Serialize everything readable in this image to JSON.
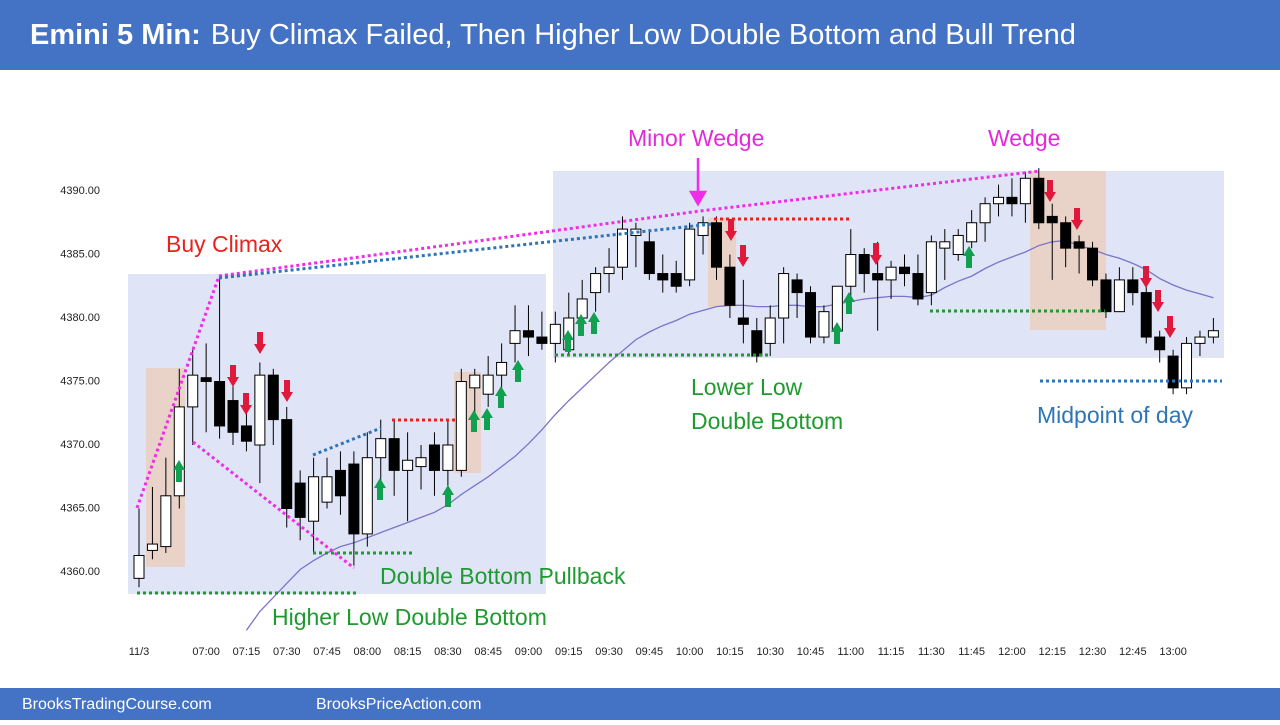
{
  "header": {
    "title_bold": "Emini 5 Min:",
    "title_rest": "Buy Climax Failed, Then Higher Low Double Bottom and Bull Trend"
  },
  "footer": {
    "left": "BrooksTradingCourse.com",
    "right": "BrooksPriceAction.com"
  },
  "chart_data": {
    "type": "candlestick",
    "categories": [
      "11/3",
      null,
      null,
      null,
      null,
      "07:00",
      null,
      null,
      "07:15",
      null,
      null,
      "07:30",
      null,
      null,
      "07:45",
      null,
      null,
      "08:00",
      null,
      null,
      "08:15",
      null,
      null,
      "08:30",
      null,
      null,
      "08:45",
      null,
      null,
      "09:00",
      null,
      null,
      "09:15",
      null,
      null,
      "09:30",
      null,
      null,
      "09:45",
      null,
      null,
      "10:00",
      null,
      null,
      "10:15",
      null,
      null,
      "10:30",
      null,
      null,
      "10:45",
      null,
      null,
      "11:00",
      null,
      null,
      "11:15",
      null,
      null,
      "11:30",
      null,
      null,
      "11:45",
      null,
      null,
      "12:00",
      null,
      null,
      "12:15",
      null,
      null,
      "12:30",
      null,
      null,
      "12:45",
      null,
      null,
      "13:00",
      null,
      null,
      null
    ],
    "open": [
      4359.5,
      4361.7,
      4362,
      4366,
      4373,
      4375.3,
      4375,
      4373.5,
      4371.5,
      4370,
      4375.5,
      4372,
      4367,
      4364,
      4365.5,
      4368,
      4368.5,
      4363,
      4369,
      4370.5,
      4368,
      4368.3,
      4370,
      4368,
      4368,
      4374.5,
      4374,
      4375.5,
      4378,
      4379,
      4378.5,
      4378,
      4377.5,
      4380,
      4382,
      4383.5,
      4384,
      4386.5,
      4386,
      4383.5,
      4383.5,
      4383,
      4386.5,
      4387.5,
      4384,
      4380,
      4379,
      4378,
      4380,
      4383,
      4382,
      4378.5,
      4379,
      4382.5,
      4385,
      4383.5,
      4383,
      4384,
      4383.5,
      4382,
      4385.5,
      4385,
      4386,
      4387.5,
      4389,
      4389.5,
      4389,
      4391,
      4388,
      4387.5,
      4386,
      4385.5,
      4383,
      4380.5,
      4383,
      4382,
      4378.5,
      4377,
      4374.5,
      4378,
      4378.5
    ],
    "high": [
      4365,
      4366.7,
      4369,
      4376,
      4377.5,
      4378,
      4383.2,
      4375,
      4373,
      4376.5,
      4376,
      4373,
      4368,
      4369,
      4369,
      4369.5,
      4369.5,
      4371,
      4372,
      4372,
      4371,
      4370,
      4371,
      4372,
      4376,
      4376,
      4377,
      4378,
      4381,
      4381,
      4380.5,
      4380.5,
      4382,
      4383,
      4384,
      4385.5,
      4388,
      4387.5,
      4387,
      4385,
      4384.5,
      4387.5,
      4388,
      4388,
      4385,
      4383,
      4380,
      4381,
      4384,
      4383.5,
      4382.5,
      4381,
      4382.5,
      4387,
      4385.5,
      4386,
      4384.5,
      4385,
      4385,
      4386.5,
      4387,
      4387,
      4388.5,
      4389.5,
      4390.5,
      4391,
      4391.5,
      4391.8,
      4389,
      4388,
      4386.5,
      4386,
      4383.5,
      4384,
      4384,
      4382.5,
      4379,
      4377.5,
      4378.5,
      4379,
      4380
    ],
    "low": [
      4358.8,
      4361,
      4361.5,
      4365,
      4370,
      4371,
      4370.5,
      4370,
      4369.5,
      4367,
      4370,
      4363.5,
      4362.5,
      4361.5,
      4365,
      4364.5,
      4360.5,
      4362,
      4367,
      4366,
      4364,
      4366.5,
      4366,
      4366,
      4367.5,
      4372,
      4373,
      4374,
      4376.5,
      4377,
      4377.5,
      4376.5,
      4377,
      4379.5,
      4380.5,
      4382,
      4383,
      4384,
      4383,
      4382,
      4382,
      4382.5,
      4385,
      4383,
      4380,
      4378,
      4376.5,
      4377,
      4378,
      4380,
      4378,
      4378,
      4378,
      4381,
      4382,
      4379,
      4381.5,
      4382.5,
      4381,
      4381,
      4383,
      4384.5,
      4385.5,
      4386,
      4388,
      4388,
      4387.5,
      4387,
      4383,
      4384,
      4383.5,
      4382.5,
      4380,
      4380.5,
      4381,
      4378,
      4376.5,
      4374,
      4374,
      4377,
      4378
    ],
    "close": [
      4361.3,
      4362.2,
      4366,
      4373,
      4375.5,
      4375,
      4371.5,
      4371,
      4370.3,
      4375.5,
      4372,
      4365,
      4364.3,
      4367.5,
      4367.5,
      4366,
      4363,
      4369,
      4370.5,
      4368,
      4368.8,
      4369,
      4368,
      4370,
      4375,
      4375.5,
      4375.5,
      4376.5,
      4379,
      4378.5,
      4378,
      4379.5,
      4380,
      4381.5,
      4383.5,
      4384,
      4387,
      4387,
      4383.5,
      4383,
      4382.5,
      4387,
      4387.5,
      4384,
      4381,
      4379.5,
      4377,
      4380,
      4383.5,
      4382,
      4378.5,
      4380.5,
      4382.5,
      4385,
      4383.5,
      4383,
      4384,
      4383.5,
      4381.5,
      4386,
      4386,
      4386.5,
      4387.5,
      4389,
      4389.5,
      4389,
      4391,
      4387.5,
      4387.5,
      4385.5,
      4385.5,
      4383,
      4380.5,
      4383,
      4382,
      4378.5,
      4377.5,
      4374.5,
      4378,
      4378.5,
      4379
    ],
    "up_color": "#ffffff",
    "down_color": "#000000",
    "moving_average": {
      "color": "#7b74c9",
      "values": [
        null,
        null,
        null,
        null,
        null,
        null,
        null,
        null,
        4355.4,
        4356.9,
        4358.0,
        4359.1,
        4360.2,
        4360.9,
        4361.5,
        4362.0,
        4362.3,
        4362.7,
        4363.1,
        4363.5,
        4363.9,
        4364.3,
        4364.7,
        4365.3,
        4366.1,
        4366.8,
        4367.5,
        4368.3,
        4369.1,
        4370.1,
        4371.2,
        4372.4,
        4373.5,
        4374.5,
        4375.5,
        4376.5,
        4377.4,
        4378.3,
        4378.9,
        4379.4,
        4379.8,
        4380.3,
        4380.6,
        4380.9,
        4381.0,
        4381.0,
        4380.9,
        4380.9,
        4381.0,
        4381.0,
        4380.9,
        4380.9,
        4381.1,
        4381.3,
        4381.5,
        4381.6,
        4381.7,
        4381.7,
        4381.6,
        4381.8,
        4382.4,
        4382.9,
        4383.3,
        4383.9,
        4384.4,
        4384.8,
        4385.2,
        4385.7,
        4386.0,
        4386.1,
        4385.7,
        4385.4,
        4385.0,
        4384.7,
        4384.3,
        4383.8,
        4383.1,
        4382.6,
        4382.2,
        4381.9,
        4381.6
      ]
    },
    "ylim": [
      4355,
      4397
    ],
    "yticks": [
      {
        "value": 4360,
        "label": "4360.00"
      },
      {
        "value": 4365,
        "label": "4365.00"
      },
      {
        "value": 4370,
        "label": "4370.00"
      },
      {
        "value": 4375,
        "label": "4375.00"
      },
      {
        "value": 4380,
        "label": "4380.00"
      },
      {
        "value": 4385,
        "label": "4385.00"
      },
      {
        "value": 4390,
        "label": "4390.00"
      }
    ],
    "annotations": {
      "buy_climax": "Buy Climax",
      "minor_wedge": "Minor Wedge",
      "wedge": "Wedge",
      "lower_low_1": "Lower Low",
      "lower_low_2": "Double Bottom",
      "double_bottom_pullback": "Double Bottom Pullback",
      "higher_low": "Higher Low Double Bottom",
      "midpoint": "Midpoint of day"
    }
  }
}
